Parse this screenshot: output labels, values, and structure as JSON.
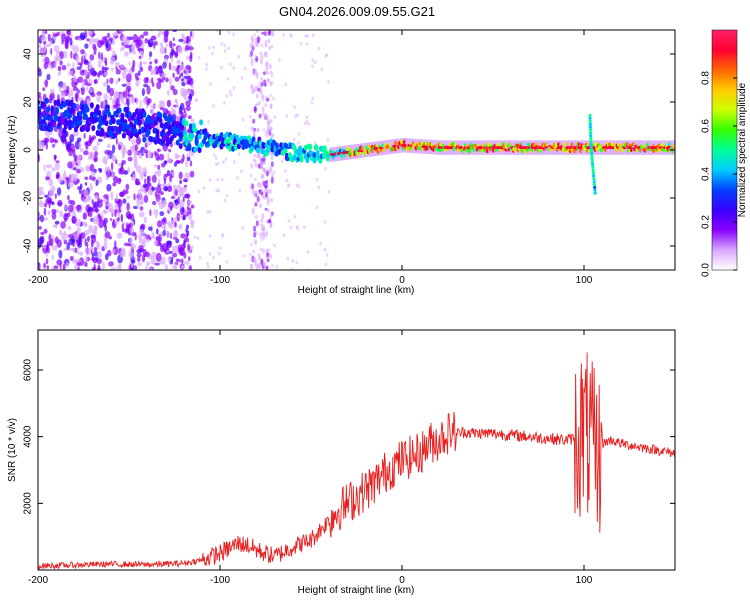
{
  "title": "GN04.2026.009.09.55.G21",
  "chart_data": [
    {
      "type": "heatmap",
      "xlabel": "Height of straight line (km)",
      "ylabel": "Frequency (Hz)",
      "xlim": [
        -200,
        150
      ],
      "ylim": [
        -50,
        50
      ],
      "x_ticks": [
        "-200",
        "-100",
        "0",
        "100"
      ],
      "y_ticks": [
        "-40",
        "-20",
        "0",
        "20",
        "40"
      ],
      "colorbar": {
        "label": "Normalized spectral amplitude",
        "range": [
          0,
          1
        ],
        "ticks": [
          "0.0",
          "0.2",
          "0.4",
          "0.6",
          "0.8"
        ],
        "colors": [
          "#ffffff",
          "#d9a8ff",
          "#8800ff",
          "#3a00ff",
          "#0040ff",
          "#00ccff",
          "#00ff99",
          "#33ff00",
          "#ccff00",
          "#ffcc00",
          "#ff6600",
          "#ff0033",
          "#ff2266"
        ]
      },
      "ridge": {
        "x": [
          -200,
          -170,
          -140,
          -120,
          -100,
          -80,
          -60,
          -40,
          -20,
          0,
          20,
          40,
          60,
          80,
          100,
          110,
          150
        ],
        "y": [
          15,
          13,
          10,
          7,
          4,
          2,
          -1,
          -2,
          0,
          2,
          1,
          1,
          1,
          1,
          1,
          1,
          1
        ]
      }
    },
    {
      "type": "line",
      "xlabel": "Height of straight line (km)",
      "ylabel": "SNR (10 * v/v)",
      "xlim": [
        -200,
        150
      ],
      "ylim": [
        0,
        7200
      ],
      "x_ticks": [
        "-200",
        "-100",
        "0",
        "100"
      ],
      "y_ticks": [
        "2000",
        "4000",
        "6000"
      ],
      "series": [
        {
          "color": "#e82020",
          "x": [
            -200,
            -180,
            -160,
            -140,
            -120,
            -110,
            -100,
            -95,
            -90,
            -85,
            -80,
            -75,
            -70,
            -60,
            -50,
            -45,
            -40,
            -35,
            -30,
            -25,
            -20,
            -15,
            -10,
            -5,
            0,
            5,
            10,
            15,
            20,
            25,
            28,
            30,
            35,
            40,
            50,
            60,
            70,
            80,
            90,
            95,
            100,
            103,
            105,
            107,
            110,
            115,
            120,
            130,
            140,
            150
          ],
          "y": [
            120,
            150,
            180,
            160,
            200,
            300,
            500,
            650,
            800,
            750,
            600,
            500,
            400,
            700,
            900,
            1200,
            1500,
            1800,
            2000,
            2200,
            2400,
            2600,
            2900,
            3100,
            3300,
            3400,
            3500,
            3800,
            3900,
            4100,
            4200,
            4100,
            4150,
            4100,
            4100,
            4050,
            4000,
            3950,
            3900,
            3950,
            4200,
            3900,
            3600,
            3200,
            3800,
            3900,
            3800,
            3700,
            3600,
            3500
          ]
        }
      ]
    }
  ]
}
